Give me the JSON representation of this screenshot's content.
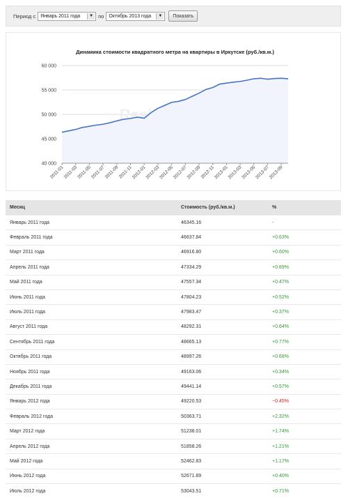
{
  "filter": {
    "period_from_label": "Период с",
    "from_value": "Январь 2011 года",
    "to_label": "по",
    "to_value": "Октябрь 2013 года",
    "submit_label": "Показать"
  },
  "chart_data": {
    "type": "area",
    "title": "Динамика стоимости квадратного метра на квартиры в Иркутске (руб./кв.м.)",
    "watermark": "RealtyVision.ru",
    "x": [
      "2011-01",
      "2011-02",
      "2011-03",
      "2011-04",
      "2011-05",
      "2011-06",
      "2011-07",
      "2011-08",
      "2011-09",
      "2011-10",
      "2011-11",
      "2011-12",
      "2012-01",
      "2012-02",
      "2012-03",
      "2012-04",
      "2012-05",
      "2012-06",
      "2012-07",
      "2012-08",
      "2012-09",
      "2012-10",
      "2012-11",
      "2012-12",
      "2013-01",
      "2013-02",
      "2013-03",
      "2013-04",
      "2013-05",
      "2013-06",
      "2013-07",
      "2013-08",
      "2013-09",
      "2013-10"
    ],
    "x_tick_labels": [
      "2011-01",
      "2011-03",
      "2011-05",
      "2011-07",
      "2011-09",
      "2011-11",
      "2012-01",
      "2012-03",
      "2012-05",
      "2012-07",
      "2012-09",
      "2012-11",
      "2013-01",
      "2013-03",
      "2013-05",
      "2013-07",
      "2013-09"
    ],
    "series": [
      {
        "values": [
          46345.16,
          46637.84,
          46916.8,
          47334.29,
          47557.34,
          47804.23,
          47983.47,
          48292.31,
          48665.13,
          48997.26,
          49163.06,
          49441.14,
          49220.53,
          50363.71,
          51238.01,
          51858.26,
          52462.83,
          52671.89,
          53043.51,
          53700,
          54350,
          55100,
          55500,
          56200,
          56400,
          56600,
          56750,
          57000,
          57300,
          57400,
          57200,
          57350,
          57400,
          57300
        ],
        "color": "#4674c4",
        "fill": "#f1f4fc"
      }
    ],
    "y_ticks": [
      "40 000",
      "45 000",
      "50 000",
      "55 000",
      "60 000"
    ],
    "ylim": [
      40000,
      60000
    ],
    "grid": true,
    "legend": "none"
  },
  "table": {
    "headers": [
      "Месяц",
      "Стоимость (руб./кв.м.)",
      "%"
    ],
    "rows": [
      {
        "month": "Январь 2011 года",
        "price": "46345.16",
        "pct": "-",
        "trend": "none"
      },
      {
        "month": "Февраль 2011 года",
        "price": "46637.84",
        "pct": "+0.63%",
        "trend": "up"
      },
      {
        "month": "Март 2011 года",
        "price": "46916.80",
        "pct": "+0.60%",
        "trend": "up"
      },
      {
        "month": "Апрель 2011 года",
        "price": "47334.29",
        "pct": "+0.89%",
        "trend": "up"
      },
      {
        "month": "Май 2011 года",
        "price": "47557.34",
        "pct": "+0.47%",
        "trend": "up"
      },
      {
        "month": "Июнь 2011 года",
        "price": "47804.23",
        "pct": "+0.52%",
        "trend": "up"
      },
      {
        "month": "Июль 2011 года",
        "price": "47983.47",
        "pct": "+0.37%",
        "trend": "up"
      },
      {
        "month": "Август 2011 года",
        "price": "48292.31",
        "pct": "+0.64%",
        "trend": "up"
      },
      {
        "month": "Сентябрь 2011 года",
        "price": "48665.13",
        "pct": "+0.77%",
        "trend": "up"
      },
      {
        "month": "Октябрь 2011 года",
        "price": "48997.26",
        "pct": "+0.68%",
        "trend": "up"
      },
      {
        "month": "Ноябрь 2011 года",
        "price": "49163.06",
        "pct": "+0.34%",
        "trend": "up"
      },
      {
        "month": "Декабрь 2011 года",
        "price": "49441.14",
        "pct": "+0.57%",
        "trend": "up"
      },
      {
        "month": "Январь 2012 года",
        "price": "49220.53",
        "pct": "−0.45%",
        "trend": "down"
      },
      {
        "month": "Февраль 2012 года",
        "price": "50363.71",
        "pct": "+2.32%",
        "trend": "up"
      },
      {
        "month": "Март 2012 года",
        "price": "51238.01",
        "pct": "+1.74%",
        "trend": "up"
      },
      {
        "month": "Апрель 2012 года",
        "price": "51858.26",
        "pct": "+1.21%",
        "trend": "up"
      },
      {
        "month": "Май 2012 года",
        "price": "52462.83",
        "pct": "+1.17%",
        "trend": "up"
      },
      {
        "month": "Июнь 2012 года",
        "price": "52671.89",
        "pct": "+0.40%",
        "trend": "up"
      },
      {
        "month": "Июль 2012 года",
        "price": "53043.51",
        "pct": "+0.71%",
        "trend": "up"
      }
    ]
  }
}
